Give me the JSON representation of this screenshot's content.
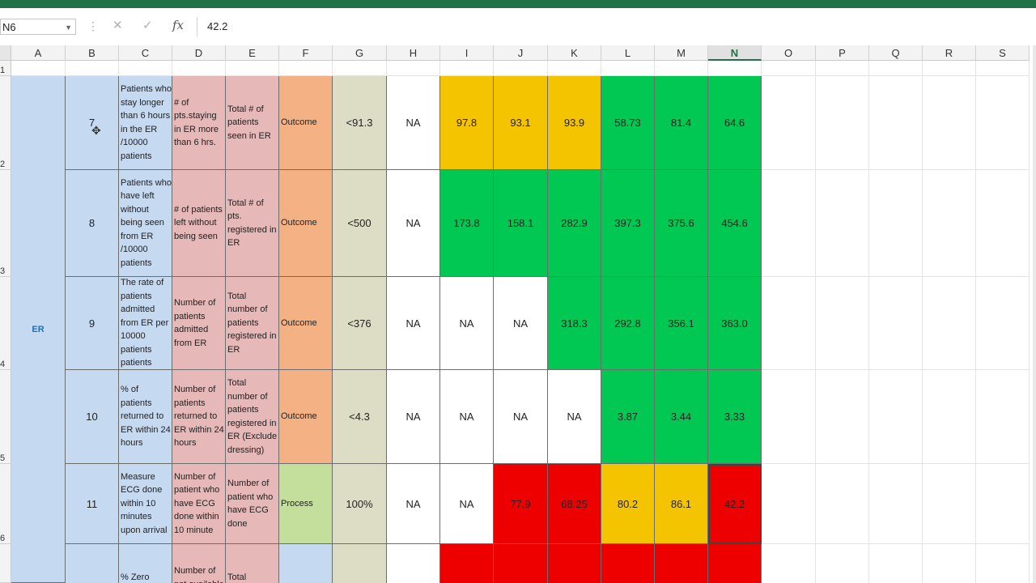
{
  "name_box": "N6",
  "formula_value": "42.2",
  "formula_buttons": {
    "cancel": "✕",
    "enter": "✓",
    "fx": "fx"
  },
  "columns": [
    "A",
    "B",
    "C",
    "D",
    "E",
    "F",
    "G",
    "H",
    "I",
    "J",
    "K",
    "L",
    "M",
    "N",
    "O",
    "P",
    "Q",
    "R",
    "S"
  ],
  "selected_column": "N",
  "row_numbers": [
    "1",
    "2",
    "3",
    "4",
    "5",
    "6"
  ],
  "department": "ER",
  "rows": [
    {
      "num": "7",
      "indicator": "Patients who stay longer than 6 hours in the ER /10000 patients",
      "numerator": "# of pts.staying in ER more than 6 hrs.",
      "denominator": "Total # of patients seen in ER",
      "type": "Outcome",
      "target": "<91.3",
      "h": "NA",
      "vals": [
        {
          "v": "97.8",
          "c": "yellow"
        },
        {
          "v": "93.1",
          "c": "yellow"
        },
        {
          "v": "93.9",
          "c": "yellow"
        },
        {
          "v": "58.73",
          "c": "green"
        },
        {
          "v": "81.4",
          "c": "green"
        },
        {
          "v": "64.6",
          "c": "green"
        }
      ]
    },
    {
      "num": "8",
      "indicator": "Patients who have left without being seen from ER /10000 patients",
      "numerator": "# of patients left without being seen",
      "denominator": "Total # of pts. registered in ER",
      "type": "Outcome",
      "target": "<500",
      "h": "NA",
      "vals": [
        {
          "v": "173.8",
          "c": "green"
        },
        {
          "v": "158.1",
          "c": "green"
        },
        {
          "v": "282.9",
          "c": "green"
        },
        {
          "v": "397.3",
          "c": "green"
        },
        {
          "v": "375.6",
          "c": "green"
        },
        {
          "v": "454.6",
          "c": "green"
        }
      ]
    },
    {
      "num": "9",
      "indicator": "The rate of patients admitted from ER per 10000 patients patients",
      "numerator": "Number of patients admitted from ER",
      "denominator": "Total number of patients registered in ER",
      "type": "Outcome",
      "target": "<376",
      "h": "NA",
      "vals": [
        {
          "v": "NA",
          "c": "white"
        },
        {
          "v": "NA",
          "c": "white"
        },
        {
          "v": "318.3",
          "c": "green"
        },
        {
          "v": "292.8",
          "c": "green"
        },
        {
          "v": "356.1",
          "c": "green"
        },
        {
          "v": "363.0",
          "c": "green"
        }
      ]
    },
    {
      "num": "10",
      "indicator": " % of patients returned to ER within 24 hours",
      "numerator": "Number of patients returned to ER within 24 hours",
      "denominator": "Total number of patients registered in ER (Exclude dressing)",
      "type": "Outcome",
      "target": "<4.3",
      "h": "NA",
      "vals": [
        {
          "v": "NA",
          "c": "white"
        },
        {
          "v": "NA",
          "c": "white"
        },
        {
          "v": "NA",
          "c": "white"
        },
        {
          "v": "3.87",
          "c": "green"
        },
        {
          "v": "3.44",
          "c": "green"
        },
        {
          "v": "3.33",
          "c": "green"
        }
      ]
    },
    {
      "num": "11",
      "indicator": "Measure ECG  done within 10 minutes upon arrival",
      "numerator": "Number of patient who have ECG done within 10 minute",
      "denominator": "Number of patient who have ECG done",
      "type": "Process",
      "target": "100%",
      "h": "NA",
      "vals": [
        {
          "v": "NA",
          "c": "white"
        },
        {
          "v": "77.9",
          "c": "red"
        },
        {
          "v": "68.25",
          "c": "red"
        },
        {
          "v": "80.2",
          "c": "yellow"
        },
        {
          "v": "86.1",
          "c": "yellow"
        },
        {
          "v": "42.2",
          "c": "red"
        }
      ]
    },
    {
      "num": "",
      "indicator": "% Zero",
      "numerator": "Number of not available",
      "denominator": "Total",
      "type": "",
      "target": "",
      "h": "",
      "vals": [
        {
          "v": "",
          "c": "red"
        },
        {
          "v": "",
          "c": "red"
        },
        {
          "v": "",
          "c": "red"
        },
        {
          "v": "",
          "c": "red"
        },
        {
          "v": "",
          "c": "red"
        },
        {
          "v": "",
          "c": "red"
        }
      ]
    }
  ],
  "colors": {
    "excel_green": "#217346",
    "yellow": "#f5c400",
    "green": "#00c853",
    "red": "#ee0000",
    "blue": "#c5d9f1",
    "pink": "#e6b8b7",
    "orange": "#f4b183",
    "light_green": "#c4df9b",
    "beige": "#dddcc5"
  }
}
